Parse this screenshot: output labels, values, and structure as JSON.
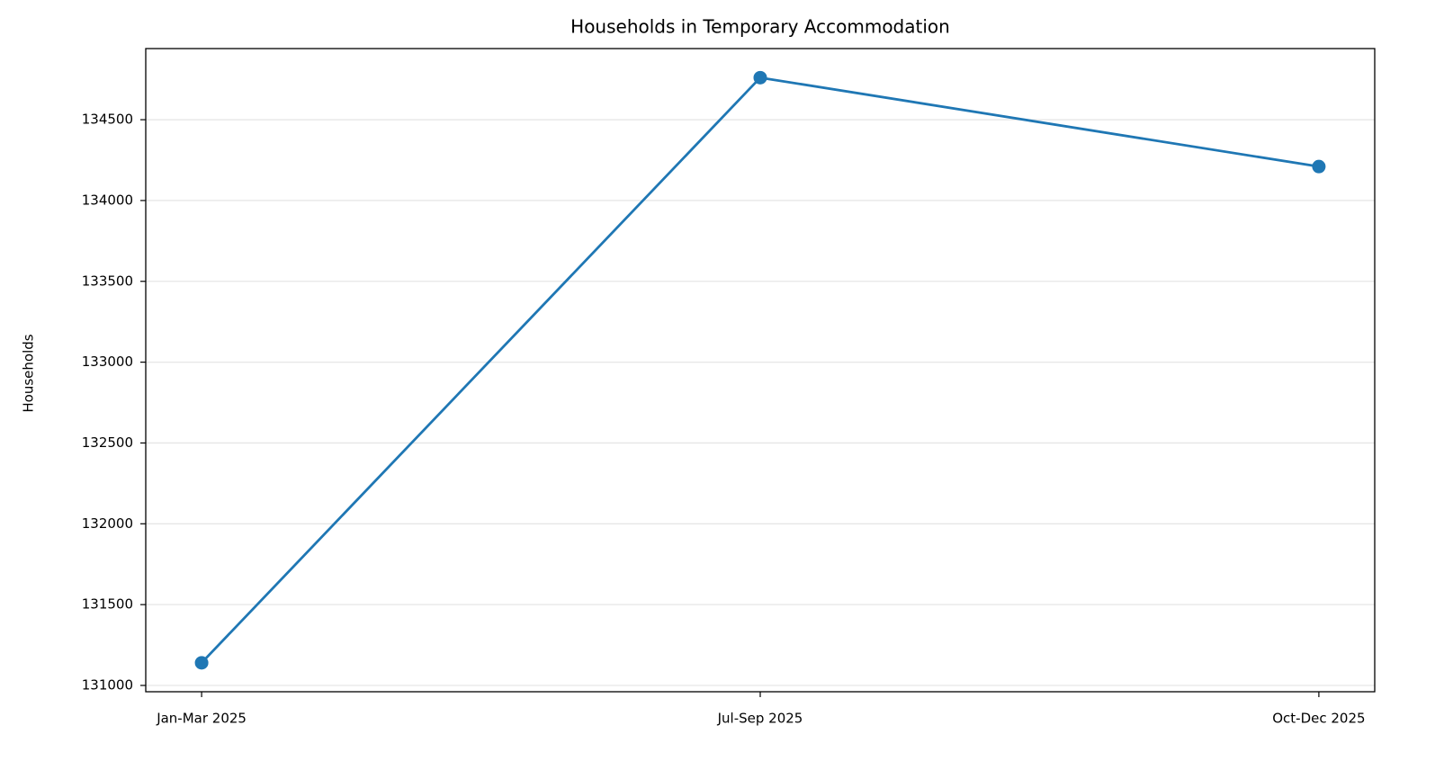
{
  "chart_data": {
    "type": "line",
    "title": "Households in Temporary Accommodation",
    "y_label": "Households",
    "categories": [
      "Jan-Mar 2025",
      "Jul-Sep 2025",
      "Oct-Dec 2025"
    ],
    "series": [
      {
        "name": "Households",
        "color": "#1f77b4",
        "values": [
          131140,
          134760,
          134210
        ]
      }
    ],
    "ylim": [
      130961,
      134940
    ],
    "yticks": [
      131000,
      131500,
      132000,
      132500,
      133000,
      133500,
      134000,
      134500
    ],
    "grid": true
  }
}
